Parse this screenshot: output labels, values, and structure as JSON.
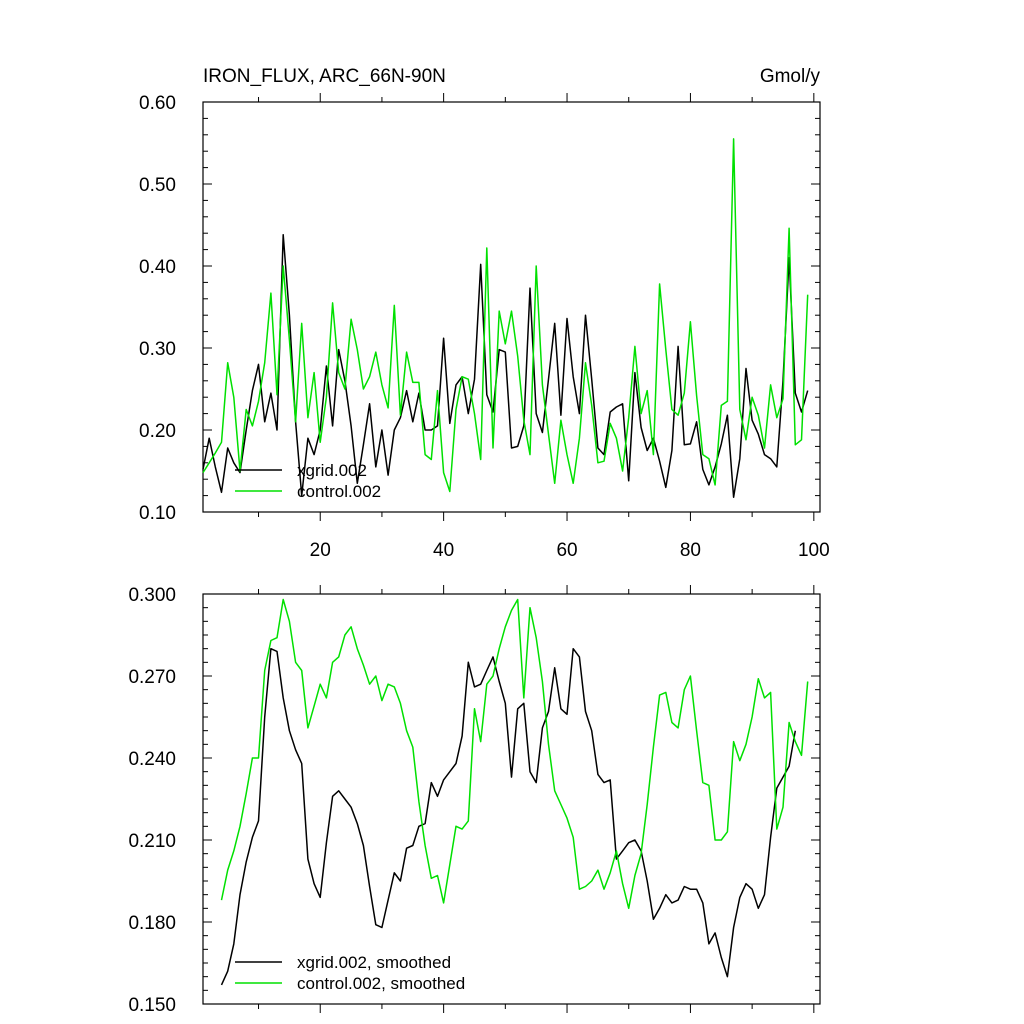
{
  "figure": {
    "title_left": "IRON_FLUX, ARC_66N-90N",
    "title_right": "Gmol/y"
  },
  "colors": {
    "xgrid": "#000000",
    "control": "#00e000"
  },
  "chart_data": [
    {
      "type": "line",
      "title": "IRON_FLUX, ARC_66N-90N",
      "units": "Gmol/y",
      "xlabel": "",
      "ylabel": "",
      "xlim": [
        1,
        101
      ],
      "ylim": [
        0.1,
        0.6
      ],
      "grid": false,
      "yticks": [
        0.1,
        0.2,
        0.3,
        0.4,
        0.5,
        0.6
      ],
      "ytick_labels": [
        "0.10",
        "0.20",
        "0.30",
        "0.40",
        "0.50",
        "0.60"
      ],
      "xticks": [
        20,
        40,
        60,
        80,
        100
      ],
      "xtick_labels": [
        "20",
        "40",
        "60",
        "80",
        "100"
      ],
      "legend_position": "bottom-left",
      "series": [
        {
          "name": "xgrid.002",
          "color": "#000000",
          "values": [
            0.152,
            0.19,
            0.155,
            0.124,
            0.178,
            0.16,
            0.148,
            0.2,
            0.248,
            0.28,
            0.21,
            0.245,
            0.2,
            0.438,
            0.34,
            0.21,
            0.12,
            0.19,
            0.17,
            0.2,
            0.278,
            0.205,
            0.298,
            0.26,
            0.205,
            0.135,
            0.182,
            0.232,
            0.155,
            0.2,
            0.145,
            0.2,
            0.215,
            0.248,
            0.21,
            0.245,
            0.2,
            0.2,
            0.205,
            0.312,
            0.208,
            0.255,
            0.265,
            0.22,
            0.262,
            0.402,
            0.243,
            0.222,
            0.298,
            0.295,
            0.178,
            0.18,
            0.205,
            0.373,
            0.22,
            0.197,
            0.262,
            0.33,
            0.218,
            0.336,
            0.265,
            0.22,
            0.34,
            0.262,
            0.178,
            0.17,
            0.222,
            0.228,
            0.232,
            0.138,
            0.27,
            0.203,
            0.175,
            0.19,
            0.162,
            0.13,
            0.175,
            0.302,
            0.182,
            0.183,
            0.21,
            0.152,
            0.133,
            0.155,
            0.183,
            0.218,
            0.118,
            0.165,
            0.275,
            0.212,
            0.195,
            0.17,
            0.165,
            0.155,
            0.26,
            0.41,
            0.245,
            0.222,
            0.248
          ]
        },
        {
          "name": "control.002",
          "color": "#00e000",
          "values": [
            0.148,
            0.16,
            0.172,
            0.185,
            0.282,
            0.24,
            0.15,
            0.225,
            0.205,
            0.235,
            0.282,
            0.367,
            0.243,
            0.4,
            0.31,
            0.21,
            0.33,
            0.215,
            0.27,
            0.185,
            0.24,
            0.355,
            0.27,
            0.25,
            0.335,
            0.298,
            0.25,
            0.265,
            0.295,
            0.255,
            0.227,
            0.352,
            0.218,
            0.295,
            0.258,
            0.258,
            0.17,
            0.164,
            0.248,
            0.148,
            0.125,
            0.225,
            0.265,
            0.262,
            0.22,
            0.164,
            0.422,
            0.178,
            0.345,
            0.305,
            0.345,
            0.29,
            0.212,
            0.17,
            0.4,
            0.255,
            0.195,
            0.135,
            0.212,
            0.17,
            0.135,
            0.19,
            0.282,
            0.23,
            0.16,
            0.162,
            0.208,
            0.19,
            0.15,
            0.215,
            0.302,
            0.22,
            0.248,
            0.17,
            0.378,
            0.298,
            0.225,
            0.218,
            0.245,
            0.332,
            0.242,
            0.17,
            0.165,
            0.133,
            0.23,
            0.235,
            0.555,
            0.225,
            0.188,
            0.24,
            0.218,
            0.178,
            0.255,
            0.215,
            0.238,
            0.446,
            0.182,
            0.188,
            0.365
          ]
        }
      ]
    },
    {
      "type": "line",
      "title": "",
      "xlabel": "",
      "ylabel": "",
      "xlim": [
        1,
        101
      ],
      "ylim": [
        0.15,
        0.3
      ],
      "grid": false,
      "yticks": [
        0.15,
        0.18,
        0.21,
        0.24,
        0.27,
        0.3
      ],
      "ytick_labels": [
        "0.150",
        "0.180",
        "0.210",
        "0.240",
        "0.270",
        "0.300"
      ],
      "xticks": [
        20,
        40,
        60,
        80,
        100
      ],
      "xtick_labels": [
        "",
        "",
        "",
        "",
        ""
      ],
      "legend_position": "bottom-left",
      "series": [
        {
          "name": "xgrid.002, smoothed",
          "color": "#000000",
          "x_start": 4,
          "values": [
            0.157,
            0.162,
            0.172,
            0.19,
            0.202,
            0.211,
            0.217,
            0.255,
            0.28,
            0.279,
            0.262,
            0.25,
            0.243,
            0.238,
            0.203,
            0.194,
            0.189,
            0.209,
            0.226,
            0.228,
            0.225,
            0.222,
            0.216,
            0.208,
            0.193,
            0.179,
            0.178,
            0.188,
            0.198,
            0.195,
            0.207,
            0.208,
            0.215,
            0.216,
            0.231,
            0.226,
            0.232,
            0.235,
            0.238,
            0.248,
            0.275,
            0.266,
            0.267,
            0.272,
            0.277,
            0.268,
            0.26,
            0.233,
            0.258,
            0.26,
            0.235,
            0.231,
            0.251,
            0.257,
            0.273,
            0.258,
            0.256,
            0.28,
            0.277,
            0.257,
            0.25,
            0.234,
            0.231,
            0.232,
            0.203,
            0.206,
            0.209,
            0.21,
            0.206,
            0.195,
            0.181,
            0.185,
            0.19,
            0.187,
            0.188,
            0.193,
            0.192,
            0.192,
            0.187,
            0.172,
            0.176,
            0.167,
            0.16,
            0.178,
            0.189,
            0.194,
            0.192,
            0.185,
            0.19,
            0.211,
            0.229,
            0.233,
            0.237,
            0.25
          ]
        },
        {
          "name": "control.002, smoothed",
          "color": "#00e000",
          "x_start": 4,
          "values": [
            0.188,
            0.199,
            0.206,
            0.215,
            0.227,
            0.24,
            0.24,
            0.272,
            0.283,
            0.284,
            0.298,
            0.29,
            0.275,
            0.272,
            0.251,
            0.259,
            0.267,
            0.262,
            0.275,
            0.277,
            0.285,
            0.288,
            0.28,
            0.274,
            0.267,
            0.27,
            0.261,
            0.267,
            0.266,
            0.26,
            0.25,
            0.244,
            0.224,
            0.208,
            0.196,
            0.197,
            0.187,
            0.201,
            0.215,
            0.214,
            0.217,
            0.258,
            0.246,
            0.267,
            0.27,
            0.28,
            0.288,
            0.294,
            0.298,
            0.262,
            0.295,
            0.284,
            0.268,
            0.245,
            0.228,
            0.223,
            0.218,
            0.211,
            0.192,
            0.193,
            0.195,
            0.199,
            0.192,
            0.198,
            0.206,
            0.194,
            0.185,
            0.197,
            0.205,
            0.223,
            0.244,
            0.263,
            0.264,
            0.253,
            0.251,
            0.265,
            0.27,
            0.25,
            0.231,
            0.23,
            0.21,
            0.21,
            0.213,
            0.246,
            0.239,
            0.245,
            0.255,
            0.269,
            0.262,
            0.264,
            0.214,
            0.222,
            0.253,
            0.246,
            0.241,
            0.268
          ]
        }
      ]
    }
  ]
}
